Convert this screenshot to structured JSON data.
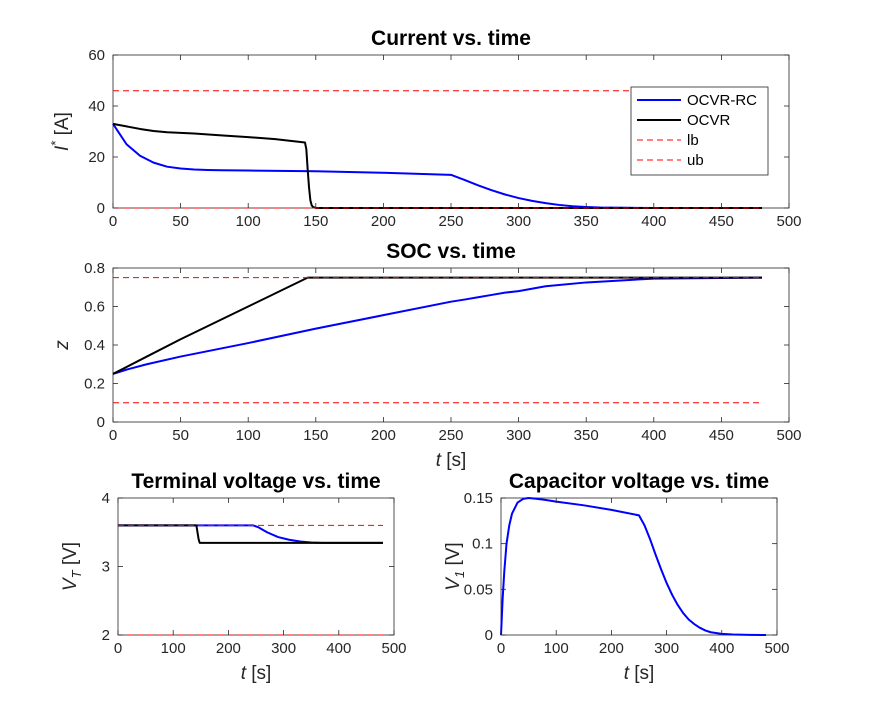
{
  "chart_data": [
    {
      "type": "line",
      "title": "Current vs. time",
      "ylabel": "I* [A]",
      "ylabel_main": "I",
      "ylabel_sup": "*",
      "ylabel_unit": " [A]",
      "xlabel": "",
      "xlim": [
        0,
        500
      ],
      "ylim": [
        0,
        60
      ],
      "xticks": [
        "0",
        "50",
        "100",
        "150",
        "200",
        "250",
        "300",
        "350",
        "400",
        "450",
        "500"
      ],
      "yticks": [
        "0",
        "20",
        "40",
        "60"
      ],
      "grid": false,
      "legend": {
        "placement": "top-right",
        "entries": [
          "OCVR-RC",
          "OCVR",
          "lb",
          "ub"
        ]
      },
      "series": [
        {
          "name": "OCVR-RC",
          "color": "#0000ff",
          "style": "solid",
          "x": [
            0,
            5,
            10,
            20,
            30,
            40,
            50,
            60,
            70,
            80,
            100,
            150,
            200,
            250,
            260,
            270,
            280,
            290,
            300,
            310,
            320,
            330,
            340,
            350,
            360,
            380,
            400,
            480
          ],
          "y": [
            33,
            29,
            25,
            20.5,
            17.8,
            16.2,
            15.5,
            15.1,
            14.9,
            14.8,
            14.7,
            14.4,
            13.8,
            13,
            11,
            8.9,
            7,
            5.3,
            3.9,
            2.8,
            1.9,
            1.2,
            0.7,
            0.4,
            0.2,
            0.1,
            0,
            0
          ]
        },
        {
          "name": "OCVR",
          "color": "#000000",
          "style": "solid",
          "x": [
            0,
            10,
            20,
            30,
            40,
            60,
            80,
            100,
            120,
            142,
            143,
            144,
            145,
            146,
            147,
            148,
            150,
            480
          ],
          "y": [
            33,
            32,
            31,
            30.2,
            29.7,
            29.2,
            28.5,
            27.8,
            27,
            25.7,
            23,
            15,
            8,
            3,
            1,
            0.4,
            0,
            0
          ]
        },
        {
          "name": "lb",
          "color": "#ff0000",
          "style": "dashed",
          "x": [
            0,
            480
          ],
          "y": [
            0,
            0
          ]
        },
        {
          "name": "ub",
          "color": "#ff0000",
          "style": "dashed",
          "x": [
            0,
            480
          ],
          "y": [
            46,
            46
          ]
        }
      ]
    },
    {
      "type": "line",
      "title": "SOC vs. time",
      "ylabel": "z",
      "ylabel_main": "z",
      "xlabel": "t [s]",
      "xlabel_main": "t",
      "xlabel_unit": " [s]",
      "xlim": [
        0,
        500
      ],
      "ylim": [
        0,
        0.8
      ],
      "xticks": [
        "0",
        "50",
        "100",
        "150",
        "200",
        "250",
        "300",
        "350",
        "400",
        "450",
        "500"
      ],
      "yticks": [
        "0",
        "0.2",
        "0.4",
        "0.6",
        "0.8"
      ],
      "grid": false,
      "series": [
        {
          "name": "OCVR-RC",
          "color": "#0000ff",
          "style": "solid",
          "x": [
            0,
            10,
            25,
            50,
            100,
            150,
            200,
            250,
            260,
            270,
            280,
            290,
            300,
            320,
            350,
            400,
            480
          ],
          "y": [
            0.25,
            0.272,
            0.3,
            0.34,
            0.41,
            0.485,
            0.555,
            0.625,
            0.636,
            0.648,
            0.66,
            0.672,
            0.68,
            0.705,
            0.725,
            0.745,
            0.75
          ]
        },
        {
          "name": "OCVR",
          "color": "#000000",
          "style": "solid",
          "x": [
            0,
            25,
            50,
            100,
            144,
            146,
            480
          ],
          "y": [
            0.25,
            0.34,
            0.43,
            0.6,
            0.75,
            0.75,
            0.75
          ]
        },
        {
          "name": "lb",
          "color": "#ff0000",
          "style": "dashed",
          "x": [
            0,
            480
          ],
          "y": [
            0.1,
            0.1
          ]
        },
        {
          "name": "ub",
          "color": "#ff0000",
          "style": "dashed",
          "x": [
            0,
            480
          ],
          "y": [
            0.75,
            0.75
          ]
        }
      ]
    },
    {
      "type": "line",
      "title": "Terminal voltage vs. time",
      "ylabel": "V_T [V]",
      "ylabel_main": "V",
      "ylabel_sub": "T",
      "ylabel_unit": " [V]",
      "xlabel": "t [s]",
      "xlabel_main": "t",
      "xlabel_unit": " [s]",
      "xlim": [
        0,
        500
      ],
      "ylim": [
        2,
        4
      ],
      "xticks": [
        "0",
        "100",
        "200",
        "300",
        "400",
        "500"
      ],
      "yticks": [
        "2",
        "3",
        "4"
      ],
      "grid": false,
      "series": [
        {
          "name": "OCVR-RC",
          "color": "#0000ff",
          "style": "solid",
          "x": [
            0,
            245,
            255,
            270,
            290,
            310,
            330,
            350,
            370,
            480
          ],
          "y": [
            3.6,
            3.6,
            3.57,
            3.5,
            3.43,
            3.39,
            3.365,
            3.35,
            3.345,
            3.345
          ]
        },
        {
          "name": "OCVR",
          "color": "#000000",
          "style": "solid",
          "x": [
            0,
            142,
            144,
            146,
            148,
            480
          ],
          "y": [
            3.6,
            3.6,
            3.5,
            3.4,
            3.345,
            3.345
          ]
        },
        {
          "name": "lb",
          "color": "#ff0000",
          "style": "dashed",
          "x": [
            0,
            480
          ],
          "y": [
            2,
            2
          ]
        },
        {
          "name": "ub",
          "color": "#ff0000",
          "style": "dashed",
          "x": [
            0,
            480
          ],
          "y": [
            3.6,
            3.6
          ]
        }
      ]
    },
    {
      "type": "line",
      "title": "Capacitor voltage vs. time",
      "ylabel": "V_1 [V]",
      "ylabel_main": "V",
      "ylabel_sub": "1",
      "ylabel_unit": " [V]",
      "xlabel": "t [s]",
      "xlabel_main": "t",
      "xlabel_unit": " [s]",
      "xlim": [
        0,
        500
      ],
      "ylim": [
        0,
        0.15
      ],
      "xticks": [
        "0",
        "100",
        "200",
        "300",
        "400",
        "500"
      ],
      "yticks": [
        "0",
        "0.05",
        "0.1",
        "0.15"
      ],
      "grid": false,
      "series": [
        {
          "name": "OCVR-RC",
          "color": "#0000ff",
          "style": "solid",
          "x": [
            0,
            3,
            6,
            10,
            15,
            20,
            30,
            40,
            50,
            60,
            80,
            100,
            150,
            200,
            250,
            260,
            270,
            280,
            290,
            300,
            310,
            320,
            330,
            340,
            350,
            360,
            370,
            380,
            400,
            420,
            450,
            480
          ],
          "y": [
            0,
            0.04,
            0.07,
            0.1,
            0.12,
            0.133,
            0.145,
            0.149,
            0.15,
            0.1495,
            0.148,
            0.146,
            0.142,
            0.137,
            0.131,
            0.12,
            0.105,
            0.088,
            0.072,
            0.057,
            0.044,
            0.033,
            0.024,
            0.017,
            0.012,
            0.008,
            0.005,
            0.003,
            0.0012,
            0.0005,
            0.0001,
            0
          ]
        }
      ]
    }
  ]
}
